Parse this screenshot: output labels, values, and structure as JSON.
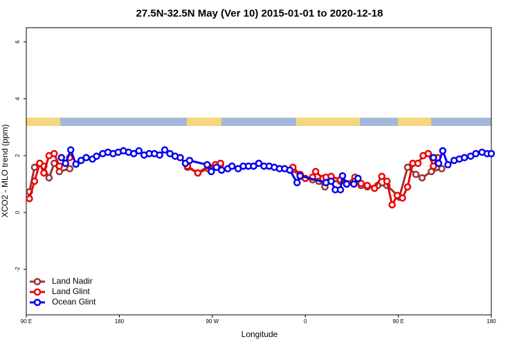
{
  "chart_data": {
    "type": "line",
    "title": "27.5N-32.5N May (Ver 10)   2015-01-01 to 2020-12-18",
    "x_label": "Longitude",
    "y_label": "XCO2 - MLO trend (ppm)",
    "xlim": [
      90,
      540
    ],
    "xticks": [
      {
        "value": 90,
        "label": "90 E"
      },
      180,
      {
        "value": 270,
        "label": "90 W"
      },
      {
        "value": 360,
        "label": "0"
      },
      {
        "value": 450,
        "label": "90 E"
      },
      {
        "value": 540,
        "label": "180"
      }
    ],
    "ylim": [
      -3.6,
      6.5
    ],
    "yticks": [
      -2,
      0,
      2,
      4,
      6
    ],
    "legend": "bottom-left",
    "series": [
      {
        "name": "Land Nadir",
        "color": "#993333",
        "x": [
          93,
          98,
          103,
          107,
          112,
          117,
          122,
          132,
          null,
          246,
          256,
          266,
          273,
          278,
          null,
          348,
          355,
          360,
          367,
          373,
          379,
          385,
          394,
          400,
          408,
          414,
          420,
          430,
          439,
          451,
          459,
          467,
          473,
          482,
          492
        ],
        "values": [
          0.73,
          1.59,
          1.73,
          1.63,
          1.22,
          1.73,
          1.44,
          1.54,
          null,
          1.59,
          1.39,
          1.54,
          1.59,
          1.68,
          null,
          1.51,
          1.27,
          1.2,
          1.15,
          1.1,
          0.9,
          1.1,
          1.1,
          1.0,
          1.24,
          0.95,
          0.9,
          0.95,
          0.95,
          0.54,
          1.59,
          1.34,
          1.22,
          1.44,
          1.54
        ]
      },
      {
        "name": "Land Glint",
        "color": "#ee0000",
        "x": [
          93,
          98,
          103,
          107,
          112,
          117,
          122,
          132,
          null,
          246,
          256,
          266,
          273,
          278,
          null,
          348,
          355,
          360,
          367,
          370,
          377,
          380,
          385,
          394,
          400,
          408,
          414,
          420,
          427,
          434,
          439,
          444,
          449,
          454,
          459,
          464,
          469,
          474,
          479,
          484,
          488
        ],
        "values": [
          0.49,
          1.1,
          1.73,
          1.39,
          2.0,
          2.07,
          1.63,
          1.93,
          null,
          1.63,
          1.39,
          1.63,
          1.68,
          1.73,
          null,
          1.59,
          1.34,
          1.2,
          1.24,
          1.44,
          1.2,
          1.24,
          1.27,
          1.15,
          1.02,
          1.1,
          1.02,
          0.95,
          0.85,
          1.27,
          1.1,
          0.27,
          0.6,
          0.51,
          0.9,
          1.73,
          1.73,
          2.0,
          2.07,
          1.63,
          1.93
        ]
      },
      {
        "name": "Ocean Glint",
        "color": "#0000ee",
        "x": [
          124,
          128,
          133,
          138,
          143,
          148,
          154,
          158,
          164,
          169,
          174,
          179,
          184,
          189,
          194,
          199,
          204,
          209,
          214,
          219,
          224,
          229,
          234,
          239,
          244,
          248,
          265,
          269,
          274,
          279,
          285,
          289,
          295,
          300,
          305,
          310,
          315,
          320,
          325,
          330,
          335,
          340,
          345,
          352,
          355,
          380,
          385,
          389,
          394,
          396,
          400,
          407,
          411,
          null,
          484,
          489,
          493,
          498,
          504,
          509,
          514,
          520,
          525,
          531,
          536,
          540
        ],
        "values": [
          1.93,
          1.73,
          2.2,
          1.7,
          1.83,
          1.93,
          1.88,
          1.98,
          2.07,
          2.12,
          2.07,
          2.12,
          2.17,
          2.12,
          2.07,
          2.17,
          2.02,
          2.07,
          2.07,
          2.02,
          2.2,
          2.07,
          1.98,
          1.93,
          1.73,
          1.83,
          1.68,
          1.44,
          1.59,
          1.49,
          1.54,
          1.63,
          1.54,
          1.63,
          1.63,
          1.63,
          1.73,
          1.63,
          1.63,
          1.59,
          1.54,
          1.54,
          1.49,
          1.05,
          1.29,
          1.05,
          1.1,
          0.8,
          0.8,
          1.29,
          1.0,
          1.0,
          1.2,
          null,
          1.93,
          1.73,
          2.17,
          1.68,
          1.83,
          1.88,
          1.93,
          1.98,
          2.07,
          2.12,
          2.07,
          2.07
        ]
      }
    ]
  }
}
